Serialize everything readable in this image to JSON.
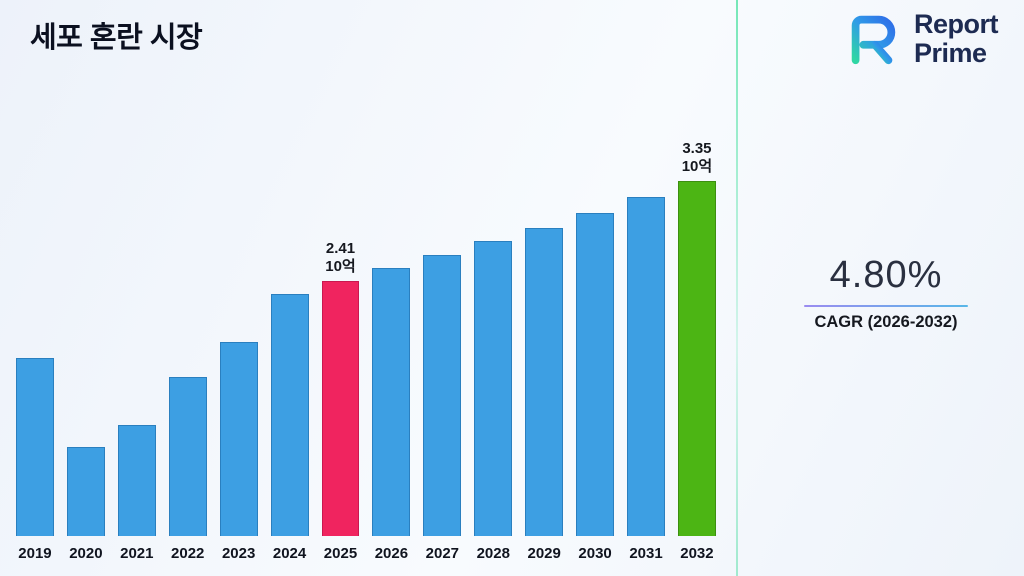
{
  "page": {
    "title": "세포 혼란 시장"
  },
  "logo": {
    "line1": "Report",
    "line2": "Prime",
    "icon": "report-prime-r-mark",
    "colors": {
      "text": "#1d2b52",
      "gradient_start": "#2fd6a4",
      "gradient_end": "#2f6de8"
    }
  },
  "stats": {
    "cagr_value": "4.80%",
    "cagr_label": "CAGR (2026-2032)"
  },
  "chart_data": {
    "type": "bar",
    "title": "세포 혼란 시장",
    "xlabel": "",
    "ylabel": "",
    "unit": "10억",
    "ylim": [
      0,
      3.6
    ],
    "grid": false,
    "legend": false,
    "categories": [
      "2019",
      "2020",
      "2021",
      "2022",
      "2023",
      "2024",
      "2025",
      "2026",
      "2027",
      "2028",
      "2029",
      "2030",
      "2031",
      "2032"
    ],
    "values": [
      1.68,
      0.84,
      1.05,
      1.5,
      1.83,
      2.28,
      2.41,
      2.53,
      2.65,
      2.78,
      2.91,
      3.05,
      3.2,
      3.35
    ],
    "annotations": [
      {
        "category": "2025",
        "lines": [
          "2.41",
          "10억"
        ]
      },
      {
        "category": "2032",
        "lines": [
          "3.35",
          "10억"
        ]
      }
    ],
    "bar_colors": {
      "default": {
        "fill": "#3d9fe3",
        "border": "#2a7fbf"
      },
      "special": {
        "2025": {
          "fill": "#f0245f",
          "border": "#c91850"
        },
        "2032": {
          "fill": "#4cb514",
          "border": "#3c8f10"
        }
      }
    }
  }
}
